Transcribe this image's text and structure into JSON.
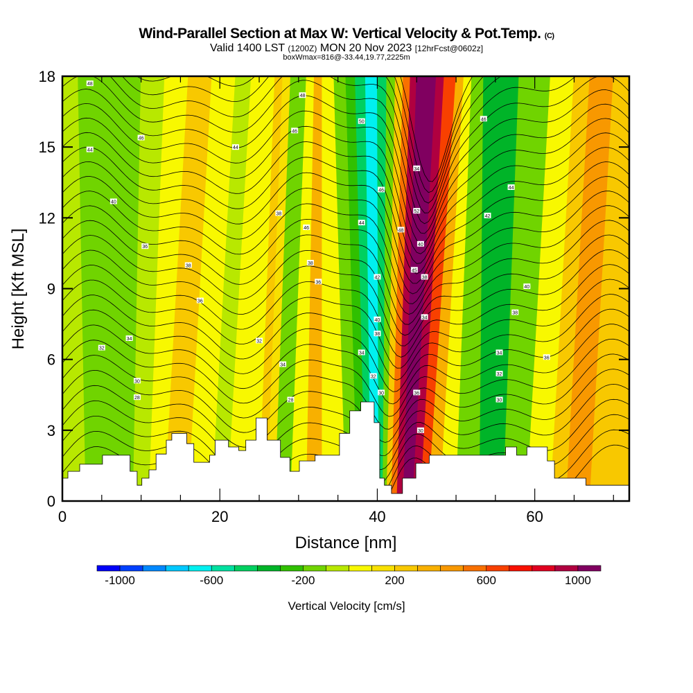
{
  "title": {
    "main": "Wind-Parallel Section at Max W: Vertical Velocity & Pot.Temp.",
    "copyright": "(C)",
    "valid_prefix": "Valid 1400 LST",
    "valid_utc": "(1200Z)",
    "valid_date": "MON 20 Nov 2023",
    "forecast": "[12hrFcst@0602z]",
    "boxmax": "boxWmax=816@-33.44,19.77,2225m"
  },
  "chart_data": {
    "type": "heatmap",
    "title": "Wind-Parallel Section at Max W: Vertical Velocity & Pot.Temp.",
    "xlabel": "Distance [nm]",
    "ylabel": "Height [Kft MSL]",
    "xlim": [
      0,
      72
    ],
    "ylim": [
      0,
      18
    ],
    "xticks": [
      "0",
      "20",
      "40",
      "60"
    ],
    "xtick_values": [
      0,
      20,
      40,
      60
    ],
    "yticks": [
      "0",
      "3",
      "6",
      "9",
      "12",
      "15",
      "18"
    ],
    "ytick_values": [
      0,
      3,
      6,
      9,
      12,
      15,
      18
    ],
    "colorbar": {
      "label": "Vertical Velocity [cm/s]",
      "tick_labels": [
        "-1000",
        "-600",
        "-200",
        "200",
        "600",
        "1000"
      ],
      "tick_values": [
        -1000,
        -600,
        -200,
        200,
        600,
        1000
      ],
      "edges": [
        -1000,
        -900,
        -800,
        -700,
        -600,
        -500,
        -400,
        -300,
        -200,
        -100,
        0,
        100,
        200,
        300,
        400,
        500,
        600,
        700,
        800,
        900,
        1000,
        1100
      ],
      "colors": [
        "#0000f8",
        "#0040ff",
        "#0088ff",
        "#00c8ff",
        "#00f0f0",
        "#00e0a0",
        "#00d060",
        "#00b428",
        "#30c000",
        "#70d400",
        "#b8e800",
        "#f8f800",
        "#f8e000",
        "#f8c800",
        "#f8b000",
        "#f89800",
        "#f87000",
        "#f84000",
        "#f81000",
        "#e00020",
        "#b00040",
        "#800060"
      ]
    },
    "vv_bands_note": "bands of vertical velocity (cm/s); x_bottom/x_top in nm",
    "vv_bands": [
      {
        "x_bottom": 3,
        "x_top": 2,
        "value": -100
      },
      {
        "x_bottom": 9,
        "x_top": 10,
        "value": -200
      },
      {
        "x_bottom": 11,
        "x_top": 13,
        "value": -100
      },
      {
        "x_bottom": 13,
        "x_top": 16,
        "value": 0
      },
      {
        "x_bottom": 16,
        "x_top": 19,
        "value": 200
      },
      {
        "x_bottom": 19,
        "x_top": 22,
        "value": 0
      },
      {
        "x_bottom": 21,
        "x_top": 24,
        "value": -100
      },
      {
        "x_bottom": 25,
        "x_top": 27,
        "value": 0
      },
      {
        "x_bottom": 26,
        "x_top": 28,
        "value": 200
      },
      {
        "x_bottom": 27,
        "x_top": 29,
        "value": 100
      },
      {
        "x_bottom": 29,
        "x_top": 31,
        "value": -200
      },
      {
        "x_bottom": 31,
        "x_top": 32,
        "value": 0
      },
      {
        "x_bottom": 33,
        "x_top": 33,
        "value": 300
      },
      {
        "x_bottom": 36,
        "x_top": 34.5,
        "value": 0
      },
      {
        "x_bottom": 37.5,
        "x_top": 36,
        "value": -200
      },
      {
        "x_bottom": 38.5,
        "x_top": 37.2,
        "value": -300
      },
      {
        "x_bottom": 39.2,
        "x_top": 38.5,
        "value": -500
      },
      {
        "x_bottom": 40.2,
        "x_top": 40,
        "value": -700
      },
      {
        "x_bottom": 40.7,
        "x_top": 41.2,
        "value": -500
      },
      {
        "x_bottom": 41.2,
        "x_top": 42.3,
        "value": -200
      },
      {
        "x_bottom": 41.8,
        "x_top": 43.3,
        "value": 200
      },
      {
        "x_bottom": 42.5,
        "x_top": 44.2,
        "value": 500
      },
      {
        "x_bottom": 43.3,
        "x_top": 45,
        "value": 900
      },
      {
        "x_bottom": 44.5,
        "x_top": 47.5,
        "value": 1100
      },
      {
        "x_bottom": 45.5,
        "x_top": 48.5,
        "value": 900
      },
      {
        "x_bottom": 46.5,
        "x_top": 50,
        "value": 600
      },
      {
        "x_bottom": 48,
        "x_top": 51,
        "value": 300
      },
      {
        "x_bottom": 50,
        "x_top": 52,
        "value": 0
      },
      {
        "x_bottom": 53,
        "x_top": 53.5,
        "value": -200
      },
      {
        "x_bottom": 56,
        "x_top": 58,
        "value": -400
      },
      {
        "x_bottom": 59,
        "x_top": 62,
        "value": -200
      },
      {
        "x_bottom": 62,
        "x_top": 65,
        "value": 0
      },
      {
        "x_bottom": 64,
        "x_top": 67,
        "value": 200
      },
      {
        "x_bottom": 67,
        "x_top": 70,
        "value": 400
      },
      {
        "x_bottom": 72,
        "x_top": 72,
        "value": 200
      }
    ],
    "terrain_kft": [
      [
        0,
        0.97
      ],
      [
        0.7,
        0.97
      ],
      [
        0.7,
        1.26
      ],
      [
        2.2,
        1.26
      ],
      [
        2.2,
        1.56
      ],
      [
        5.1,
        1.56
      ],
      [
        5.1,
        1.94
      ],
      [
        8.6,
        1.94
      ],
      [
        8.6,
        1.26
      ],
      [
        9.5,
        1.26
      ],
      [
        9.5,
        0.67
      ],
      [
        10.1,
        0.67
      ],
      [
        10.1,
        0.97
      ],
      [
        11,
        0.97
      ],
      [
        11,
        1.32
      ],
      [
        11.9,
        1.32
      ],
      [
        11.9,
        1.99
      ],
      [
        13.2,
        1.99
      ],
      [
        13.2,
        2.58
      ],
      [
        13.9,
        2.58
      ],
      [
        13.9,
        2.87
      ],
      [
        15.8,
        2.87
      ],
      [
        15.8,
        2.43
      ],
      [
        16.7,
        2.43
      ],
      [
        16.7,
        1.64
      ],
      [
        18.7,
        1.64
      ],
      [
        18.7,
        1.94
      ],
      [
        19.4,
        1.94
      ],
      [
        19.4,
        2.58
      ],
      [
        21.1,
        2.58
      ],
      [
        21.1,
        2.29
      ],
      [
        22.4,
        2.29
      ],
      [
        22.4,
        2.14
      ],
      [
        23.3,
        2.14
      ],
      [
        23.3,
        2.58
      ],
      [
        24.6,
        2.58
      ],
      [
        24.6,
        3.52
      ],
      [
        26,
        3.52
      ],
      [
        26,
        2.58
      ],
      [
        27.7,
        2.58
      ],
      [
        27.7,
        1.85
      ],
      [
        28.9,
        1.85
      ],
      [
        28.9,
        1.26
      ],
      [
        30.1,
        1.26
      ],
      [
        30.1,
        1.7
      ],
      [
        32.1,
        1.7
      ],
      [
        32.1,
        1.94
      ],
      [
        35.2,
        1.94
      ],
      [
        35.2,
        2.87
      ],
      [
        36.5,
        2.87
      ],
      [
        36.5,
        3.82
      ],
      [
        37.9,
        3.82
      ],
      [
        37.9,
        4.2
      ],
      [
        39.6,
        4.2
      ],
      [
        39.6,
        3.32
      ],
      [
        40.3,
        3.32
      ],
      [
        40.3,
        0.97
      ],
      [
        40.9,
        0.97
      ],
      [
        40.9,
        0.67
      ],
      [
        41.8,
        0.67
      ],
      [
        41.8,
        0.32
      ],
      [
        43.2,
        0.32
      ],
      [
        43.2,
        0.97
      ],
      [
        44.9,
        0.97
      ],
      [
        44.9,
        1.6
      ],
      [
        46.6,
        1.6
      ],
      [
        46.6,
        1.94
      ],
      [
        56.3,
        1.94
      ],
      [
        56.3,
        2.29
      ],
      [
        57.7,
        2.29
      ],
      [
        57.7,
        1.94
      ],
      [
        59,
        1.94
      ],
      [
        59,
        2.29
      ],
      [
        61.6,
        2.29
      ],
      [
        61.6,
        1.7
      ],
      [
        62.5,
        1.7
      ],
      [
        62.5,
        0.97
      ],
      [
        66.5,
        0.97
      ],
      [
        66.5,
        0.67
      ],
      [
        72,
        0.67
      ]
    ],
    "contour_field": "Potential Temperature",
    "contour_labels": [
      {
        "text": "48",
        "x": 3.5,
        "y": 17.7
      },
      {
        "text": "44",
        "x": 3.5,
        "y": 14.9
      },
      {
        "text": "46",
        "x": 10,
        "y": 15.4
      },
      {
        "text": "44",
        "x": 22,
        "y": 15
      },
      {
        "text": "48",
        "x": 30.5,
        "y": 17.2
      },
      {
        "text": "46",
        "x": 29.5,
        "y": 15.7
      },
      {
        "text": "40",
        "x": 6.5,
        "y": 12.7
      },
      {
        "text": "36",
        "x": 10.5,
        "y": 10.8
      },
      {
        "text": "38",
        "x": 16,
        "y": 10
      },
      {
        "text": "36",
        "x": 17.5,
        "y": 8.5
      },
      {
        "text": "32",
        "x": 5,
        "y": 6.5
      },
      {
        "text": "34",
        "x": 8.5,
        "y": 6.9
      },
      {
        "text": "30",
        "x": 9.5,
        "y": 5.1
      },
      {
        "text": "28",
        "x": 9.5,
        "y": 4.4
      },
      {
        "text": "32",
        "x": 25,
        "y": 6.8
      },
      {
        "text": "34",
        "x": 28,
        "y": 5.8
      },
      {
        "text": "28",
        "x": 29,
        "y": 4.3
      },
      {
        "text": "38",
        "x": 27.5,
        "y": 12.2
      },
      {
        "text": "46",
        "x": 31,
        "y": 11.6
      },
      {
        "text": "38",
        "x": 31.5,
        "y": 10.1
      },
      {
        "text": "36",
        "x": 32.5,
        "y": 9.3
      },
      {
        "text": "50",
        "x": 38,
        "y": 16.1
      },
      {
        "text": "46",
        "x": 40.5,
        "y": 13.2
      },
      {
        "text": "44",
        "x": 38,
        "y": 11.8
      },
      {
        "text": "42",
        "x": 40,
        "y": 9.5
      },
      {
        "text": "40",
        "x": 40,
        "y": 7.7
      },
      {
        "text": "38",
        "x": 40,
        "y": 7.1
      },
      {
        "text": "34",
        "x": 38,
        "y": 6.3
      },
      {
        "text": "32",
        "x": 39.5,
        "y": 5.3
      },
      {
        "text": "30",
        "x": 40.5,
        "y": 4.6
      },
      {
        "text": "34",
        "x": 45,
        "y": 14.1
      },
      {
        "text": "52",
        "x": 45,
        "y": 12.3
      },
      {
        "text": "48",
        "x": 43,
        "y": 11.5
      },
      {
        "text": "40",
        "x": 45.5,
        "y": 10.9
      },
      {
        "text": "45",
        "x": 44.7,
        "y": 9.8
      },
      {
        "text": "38",
        "x": 46,
        "y": 9.5
      },
      {
        "text": "34",
        "x": 46,
        "y": 7.8
      },
      {
        "text": "36",
        "x": 45,
        "y": 4.6
      },
      {
        "text": "30",
        "x": 45.5,
        "y": 3
      },
      {
        "text": "46",
        "x": 53.5,
        "y": 16.2
      },
      {
        "text": "44",
        "x": 57,
        "y": 13.3
      },
      {
        "text": "42",
        "x": 54,
        "y": 12.1
      },
      {
        "text": "40",
        "x": 59,
        "y": 9.1
      },
      {
        "text": "38",
        "x": 57.5,
        "y": 8
      },
      {
        "text": "34",
        "x": 55.5,
        "y": 6.3
      },
      {
        "text": "36",
        "x": 61.5,
        "y": 6.1
      },
      {
        "text": "32",
        "x": 55.5,
        "y": 5.4
      },
      {
        "text": "30",
        "x": 55.5,
        "y": 4.3
      }
    ]
  }
}
